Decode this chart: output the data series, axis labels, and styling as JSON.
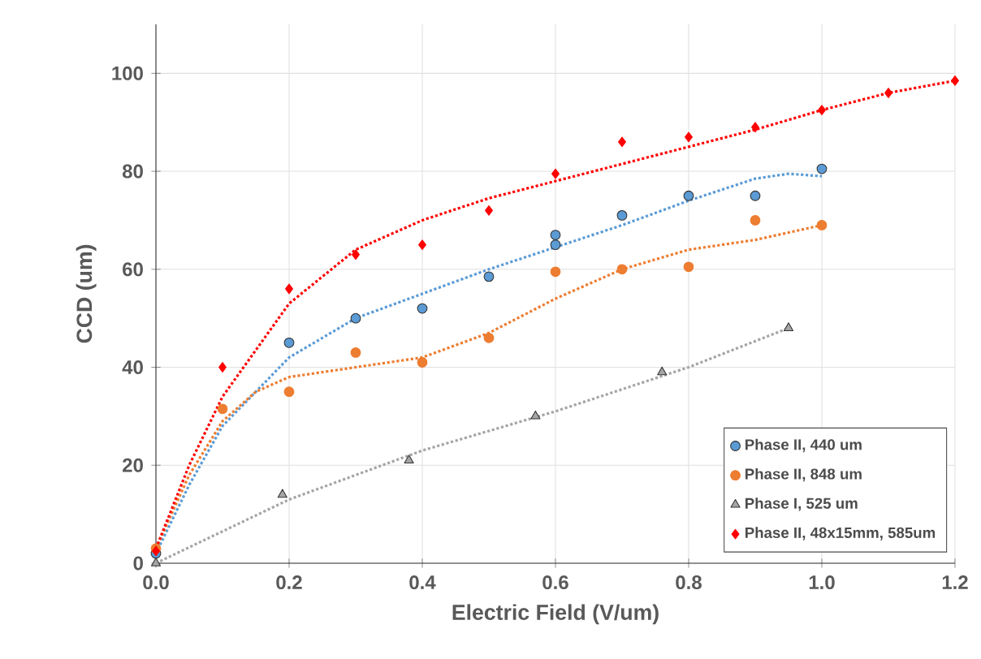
{
  "chart_data": {
    "type": "scatter",
    "xlabel": "Electric Field (V/um)",
    "ylabel": "CCD (um)",
    "xlim": [
      0,
      1.2
    ],
    "ylim": [
      0,
      110
    ],
    "xticks": [
      {
        "value": 0,
        "label": "0.0"
      },
      {
        "value": 0.2,
        "label": "0.2"
      },
      {
        "value": 0.4,
        "label": "0.4"
      },
      {
        "value": 0.6,
        "label": "0.6"
      },
      {
        "value": 0.8,
        "label": "0.8"
      },
      {
        "value": 1.0,
        "label": "1.0"
      },
      {
        "value": 1.2,
        "label": "1.2"
      }
    ],
    "yticks": [
      0,
      20,
      40,
      60,
      80,
      100
    ],
    "grid": true,
    "legend": "bottom right",
    "series": [
      {
        "name": "Phase II, 440 um",
        "color": "#5b9bd5",
        "marker": "circle",
        "x": [
          0,
          0.2,
          0.3,
          0.4,
          0.5,
          0.6,
          0.6,
          0.7,
          0.8,
          0.9,
          1.0
        ],
        "values": [
          2,
          45,
          50,
          52,
          58.5,
          65,
          67,
          71,
          75,
          75,
          80.5
        ]
      },
      {
        "name": "Phase II, 848 um",
        "color": "#ed7d31",
        "marker": "circle",
        "x": [
          0,
          0.1,
          0.2,
          0.3,
          0.4,
          0.5,
          0.6,
          0.7,
          0.8,
          0.9,
          1.0
        ],
        "values": [
          3,
          31.5,
          35,
          43,
          41,
          46,
          59.5,
          60,
          60.5,
          70,
          69
        ]
      },
      {
        "name": "Phase I, 525 um",
        "color": "#a5a5a5",
        "marker": "triangle",
        "x": [
          0,
          0.19,
          0.38,
          0.57,
          0.76,
          0.95
        ],
        "values": [
          0,
          14,
          21,
          30,
          39,
          48
        ]
      },
      {
        "name": "Phase II, 48x15mm, 585um",
        "color": "#ff0000",
        "marker": "diamond",
        "x": [
          0,
          0.1,
          0.2,
          0.3,
          0.4,
          0.5,
          0.6,
          0.7,
          0.8,
          0.9,
          1.0,
          1.1,
          1.2
        ],
        "values": [
          2.5,
          40,
          56,
          63,
          65,
          72,
          79.5,
          86,
          87,
          89,
          92.5,
          96,
          98.5
        ]
      },
      {
        "type": "line",
        "color": "#5b9bd5",
        "marker": "none",
        "line_style": "dotted",
        "x": [
          0,
          0.05,
          0.1,
          0.2,
          0.3,
          0.4,
          0.5,
          0.6,
          0.7,
          0.8,
          0.9,
          0.95,
          1.0
        ],
        "values": [
          2,
          16,
          28,
          42,
          50,
          55,
          60,
          64.5,
          69,
          74,
          78.5,
          79.5,
          79
        ]
      },
      {
        "type": "line",
        "color": "#ed7d31",
        "marker": "none",
        "line_style": "dotted",
        "x": [
          0,
          0.05,
          0.1,
          0.15,
          0.2,
          0.3,
          0.4,
          0.5,
          0.6,
          0.7,
          0.8,
          0.9,
          1.0
        ],
        "values": [
          3,
          18,
          29,
          35,
          38,
          40,
          42,
          47,
          54,
          60,
          64,
          66,
          69
        ]
      },
      {
        "type": "line",
        "color": "#a5a5a5",
        "marker": "none",
        "line_style": "dotted",
        "x": [
          0,
          0.2,
          0.4,
          0.6,
          0.8,
          0.95
        ],
        "values": [
          0,
          13,
          23,
          31,
          40,
          48
        ]
      },
      {
        "type": "line",
        "color": "#ff0000",
        "marker": "none",
        "line_style": "dotted",
        "x": [
          0,
          0.05,
          0.1,
          0.2,
          0.3,
          0.4,
          0.5,
          0.6,
          0.7,
          0.8,
          0.9,
          1.0,
          1.1,
          1.2
        ],
        "values": [
          3,
          20,
          34,
          53,
          64,
          70,
          74.5,
          78,
          81.5,
          85,
          88.5,
          92.5,
          96,
          98.5
        ]
      }
    ]
  }
}
